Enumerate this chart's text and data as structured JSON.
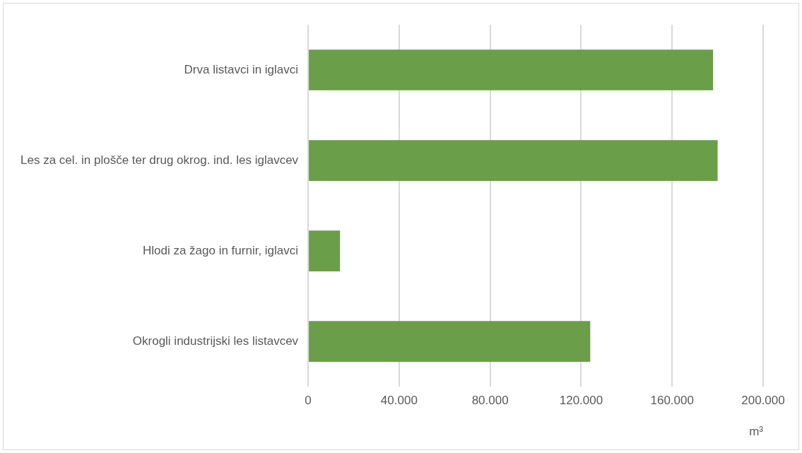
{
  "chart_data": {
    "type": "bar",
    "orientation": "horizontal",
    "categories": [
      "Drva listavci in iglavci",
      "Les za cel. in plošče ter drug okrog. ind. les iglavcev",
      "Hlodi za žago in furnir, iglavci",
      "Okrogli industrijski les listavcev"
    ],
    "values": [
      178000,
      180000,
      14000,
      124000
    ],
    "color": "#6a9e48",
    "xlabel": "m³",
    "xlim": [
      0,
      200000
    ],
    "xticks": [
      {
        "value": 0,
        "label": "0"
      },
      {
        "value": 40000,
        "label": "40.000"
      },
      {
        "value": 80000,
        "label": "80.000"
      },
      {
        "value": 120000,
        "label": "120.000"
      },
      {
        "value": 160000,
        "label": "160.000"
      },
      {
        "value": 200000,
        "label": "200.000"
      }
    ],
    "grid": "x",
    "legend": false
  }
}
